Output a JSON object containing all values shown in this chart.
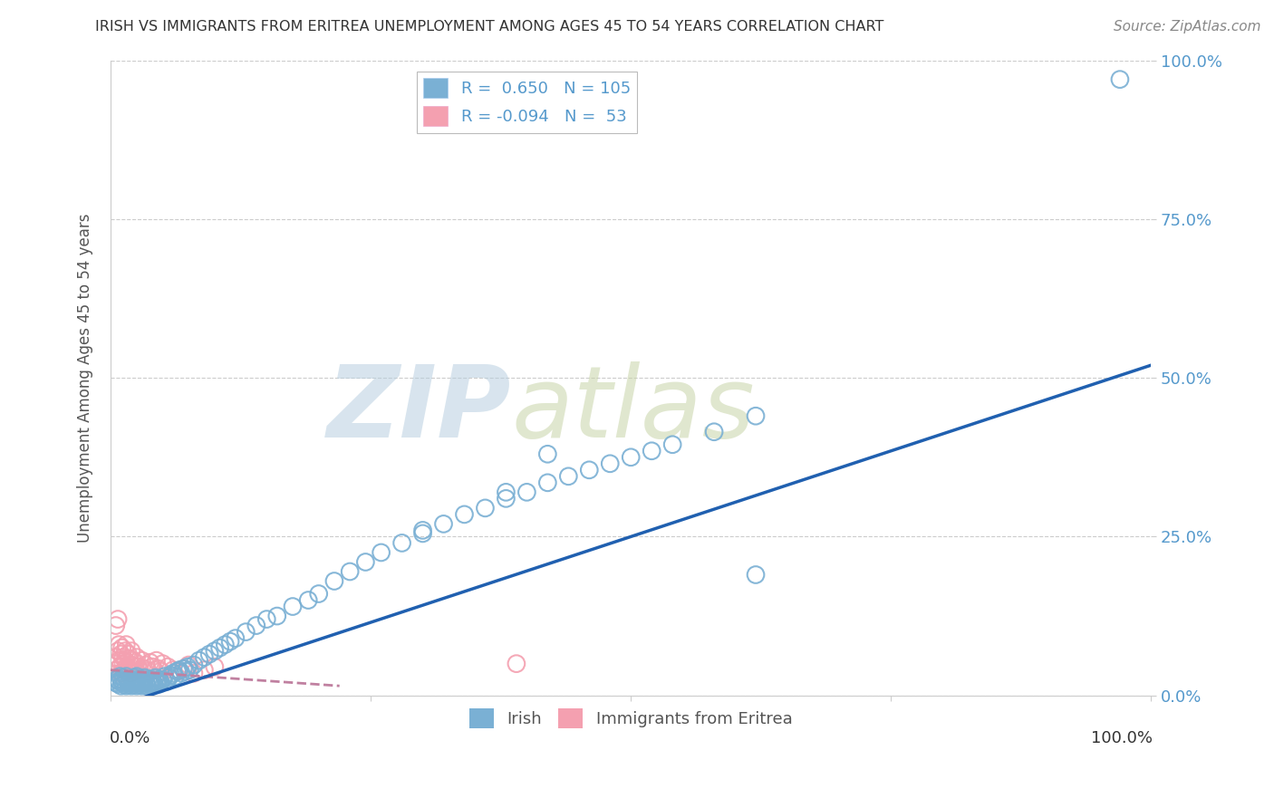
{
  "title": "IRISH VS IMMIGRANTS FROM ERITREA UNEMPLOYMENT AMONG AGES 45 TO 54 YEARS CORRELATION CHART",
  "source": "Source: ZipAtlas.com",
  "ylabel": "Unemployment Among Ages 45 to 54 years",
  "xlim": [
    0.0,
    1.0
  ],
  "ylim": [
    0.0,
    1.0
  ],
  "ytick_labels": [
    "0.0%",
    "25.0%",
    "50.0%",
    "75.0%",
    "100.0%"
  ],
  "ytick_vals": [
    0.0,
    0.25,
    0.5,
    0.75,
    1.0
  ],
  "irish_R": 0.65,
  "irish_N": 105,
  "eritrea_R": -0.094,
  "eritrea_N": 53,
  "irish_color": "#7ab0d4",
  "eritrea_color": "#f4a0b0",
  "irish_line_color": "#2060b0",
  "eritrea_line_color": "#c080a0",
  "background_color": "#ffffff",
  "grid_color": "#cccccc",
  "irish_line_x0": 0.0,
  "irish_line_y0": -0.02,
  "irish_line_x1": 1.0,
  "irish_line_y1": 0.52,
  "eritrea_line_x0": 0.0,
  "eritrea_line_y0": 0.04,
  "eritrea_line_x1": 0.22,
  "eritrea_line_y1": 0.015,
  "irish_x": [
    0.005,
    0.006,
    0.007,
    0.008,
    0.009,
    0.01,
    0.01,
    0.011,
    0.012,
    0.013,
    0.014,
    0.015,
    0.015,
    0.016,
    0.017,
    0.018,
    0.019,
    0.02,
    0.02,
    0.021,
    0.022,
    0.023,
    0.024,
    0.025,
    0.025,
    0.026,
    0.027,
    0.028,
    0.029,
    0.03,
    0.03,
    0.031,
    0.032,
    0.033,
    0.034,
    0.035,
    0.036,
    0.037,
    0.038,
    0.039,
    0.04,
    0.04,
    0.041,
    0.042,
    0.043,
    0.044,
    0.045,
    0.046,
    0.047,
    0.048,
    0.05,
    0.052,
    0.054,
    0.056,
    0.058,
    0.06,
    0.062,
    0.064,
    0.066,
    0.068,
    0.07,
    0.072,
    0.074,
    0.076,
    0.08,
    0.085,
    0.09,
    0.095,
    0.1,
    0.105,
    0.11,
    0.115,
    0.12,
    0.13,
    0.14,
    0.15,
    0.16,
    0.175,
    0.19,
    0.2,
    0.215,
    0.23,
    0.245,
    0.26,
    0.28,
    0.3,
    0.32,
    0.34,
    0.36,
    0.38,
    0.4,
    0.42,
    0.44,
    0.46,
    0.48,
    0.5,
    0.52,
    0.54,
    0.58,
    0.62,
    0.3,
    0.38,
    0.42,
    0.62,
    0.97
  ],
  "irish_y": [
    0.02,
    0.025,
    0.018,
    0.022,
    0.03,
    0.015,
    0.025,
    0.02,
    0.028,
    0.018,
    0.022,
    0.015,
    0.03,
    0.025,
    0.02,
    0.018,
    0.022,
    0.015,
    0.025,
    0.02,
    0.018,
    0.028,
    0.022,
    0.015,
    0.03,
    0.025,
    0.02,
    0.018,
    0.022,
    0.015,
    0.025,
    0.02,
    0.018,
    0.028,
    0.022,
    0.015,
    0.025,
    0.02,
    0.018,
    0.022,
    0.015,
    0.025,
    0.02,
    0.018,
    0.028,
    0.022,
    0.02,
    0.025,
    0.018,
    0.022,
    0.025,
    0.03,
    0.022,
    0.028,
    0.032,
    0.035,
    0.03,
    0.038,
    0.04,
    0.035,
    0.042,
    0.038,
    0.045,
    0.04,
    0.048,
    0.055,
    0.06,
    0.065,
    0.07,
    0.075,
    0.08,
    0.085,
    0.09,
    0.1,
    0.11,
    0.12,
    0.125,
    0.14,
    0.15,
    0.16,
    0.18,
    0.195,
    0.21,
    0.225,
    0.24,
    0.255,
    0.27,
    0.285,
    0.295,
    0.31,
    0.32,
    0.335,
    0.345,
    0.355,
    0.365,
    0.375,
    0.385,
    0.395,
    0.415,
    0.44,
    0.26,
    0.32,
    0.38,
    0.19,
    0.97
  ],
  "eritrea_x": [
    0.003,
    0.005,
    0.006,
    0.007,
    0.008,
    0.008,
    0.009,
    0.01,
    0.01,
    0.011,
    0.012,
    0.012,
    0.013,
    0.014,
    0.014,
    0.015,
    0.015,
    0.016,
    0.017,
    0.018,
    0.018,
    0.019,
    0.02,
    0.02,
    0.021,
    0.022,
    0.023,
    0.024,
    0.025,
    0.026,
    0.028,
    0.03,
    0.032,
    0.034,
    0.036,
    0.038,
    0.04,
    0.042,
    0.044,
    0.046,
    0.048,
    0.05,
    0.055,
    0.06,
    0.065,
    0.07,
    0.075,
    0.08,
    0.09,
    0.1,
    0.005,
    0.007,
    0.39
  ],
  "eritrea_y": [
    0.05,
    0.06,
    0.04,
    0.07,
    0.055,
    0.08,
    0.045,
    0.065,
    0.035,
    0.075,
    0.05,
    0.06,
    0.04,
    0.07,
    0.055,
    0.045,
    0.08,
    0.038,
    0.065,
    0.042,
    0.058,
    0.035,
    0.07,
    0.048,
    0.055,
    0.042,
    0.038,
    0.052,
    0.06,
    0.045,
    0.04,
    0.055,
    0.042,
    0.048,
    0.038,
    0.052,
    0.045,
    0.04,
    0.055,
    0.042,
    0.038,
    0.05,
    0.045,
    0.04,
    0.038,
    0.042,
    0.048,
    0.035,
    0.04,
    0.045,
    0.11,
    0.12,
    0.05
  ]
}
